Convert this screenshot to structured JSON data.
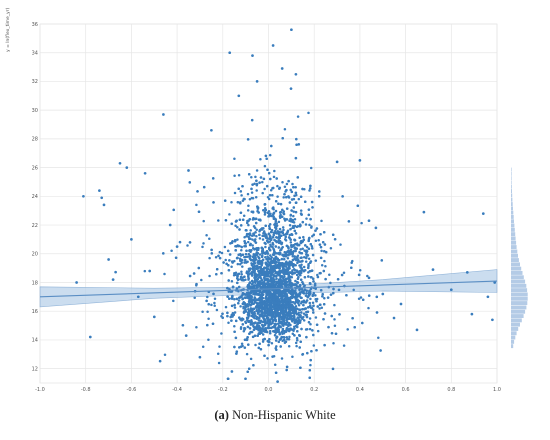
{
  "caption": {
    "label": "(a)",
    "text": "Non-Hispanic White"
  },
  "colors": {
    "point": "#3a7dbd",
    "line": "#5a8ec4",
    "band": "#b9d1ea",
    "grid": "#e6e6e6",
    "marginal": "#b4cbe6"
  },
  "chart_data": {
    "type": "scatter",
    "title": "",
    "xlabel": "",
    "ylabel": "y = ln(flex_time_yr)",
    "xlim": [
      -1.0,
      1.0
    ],
    "ylim": [
      11,
      36
    ],
    "x_ticks": [
      "-1.0",
      "-0.8",
      "-0.6",
      "-0.4",
      "-0.2",
      "0.0",
      "0.2",
      "0.4",
      "0.6",
      "0.8",
      "1.0"
    ],
    "y_ticks": [
      "12",
      "14",
      "16",
      "18",
      "20",
      "22",
      "24",
      "26",
      "28",
      "30",
      "32",
      "34",
      "36"
    ],
    "grid": true,
    "regression_line": {
      "x": [
        -1.0,
        1.0
      ],
      "y": [
        17.0,
        18.1
      ]
    },
    "confidence_band": {
      "x": [
        -1.0,
        -0.5,
        0.0,
        0.5,
        1.0
      ],
      "lower": [
        16.3,
        16.9,
        17.2,
        17.4,
        17.3
      ],
      "upper": [
        17.7,
        17.6,
        17.7,
        18.2,
        18.9
      ]
    },
    "outliers": [
      [
        -0.84,
        18.0
      ],
      [
        -0.81,
        24.0
      ],
      [
        -0.78,
        14.2
      ],
      [
        -0.74,
        24.4
      ],
      [
        -0.73,
        23.9
      ],
      [
        -0.72,
        23.4
      ],
      [
        -0.7,
        19.6
      ],
      [
        -0.68,
        18.2
      ],
      [
        -0.65,
        26.3
      ],
      [
        -0.62,
        26.0
      ],
      [
        -0.6,
        21.0
      ],
      [
        -0.57,
        17.0
      ],
      [
        -0.54,
        25.6
      ],
      [
        -0.52,
        18.8
      ],
      [
        -0.5,
        15.6
      ],
      [
        -0.46,
        29.7
      ],
      [
        -0.43,
        22.0
      ],
      [
        -0.4,
        20.5
      ],
      [
        -0.36,
        14.3
      ],
      [
        -0.35,
        25.8
      ],
      [
        -0.3,
        12.8
      ],
      [
        -0.25,
        28.6
      ],
      [
        -0.17,
        34.0
      ],
      [
        -0.16,
        11.8
      ],
      [
        -0.13,
        31.0
      ],
      [
        -0.07,
        33.8
      ],
      [
        -0.05,
        32.0
      ],
      [
        0.02,
        34.5
      ],
      [
        0.04,
        11.1
      ],
      [
        0.06,
        32.9
      ],
      [
        0.1,
        35.6
      ],
      [
        0.12,
        32.5
      ],
      [
        0.3,
        26.4
      ],
      [
        0.4,
        26.5
      ],
      [
        0.44,
        22.3
      ],
      [
        0.47,
        21.8
      ],
      [
        0.5,
        17.2
      ],
      [
        0.58,
        16.5
      ],
      [
        0.65,
        14.7
      ],
      [
        0.68,
        22.9
      ],
      [
        0.72,
        18.9
      ],
      [
        0.8,
        17.5
      ],
      [
        0.87,
        18.7
      ],
      [
        0.89,
        15.8
      ],
      [
        0.94,
        22.8
      ],
      [
        0.96,
        17.0
      ],
      [
        0.98,
        15.4
      ],
      [
        0.99,
        18.0
      ]
    ],
    "bulk": {
      "n": 4200,
      "center": [
        0.02,
        17.2
      ],
      "note": "dense cloud of points concentrated near x = 0, y = 16–18, spreading up to y ≈ 30"
    },
    "marginal": "histogram of y on right side, peak near y = 16–17"
  }
}
